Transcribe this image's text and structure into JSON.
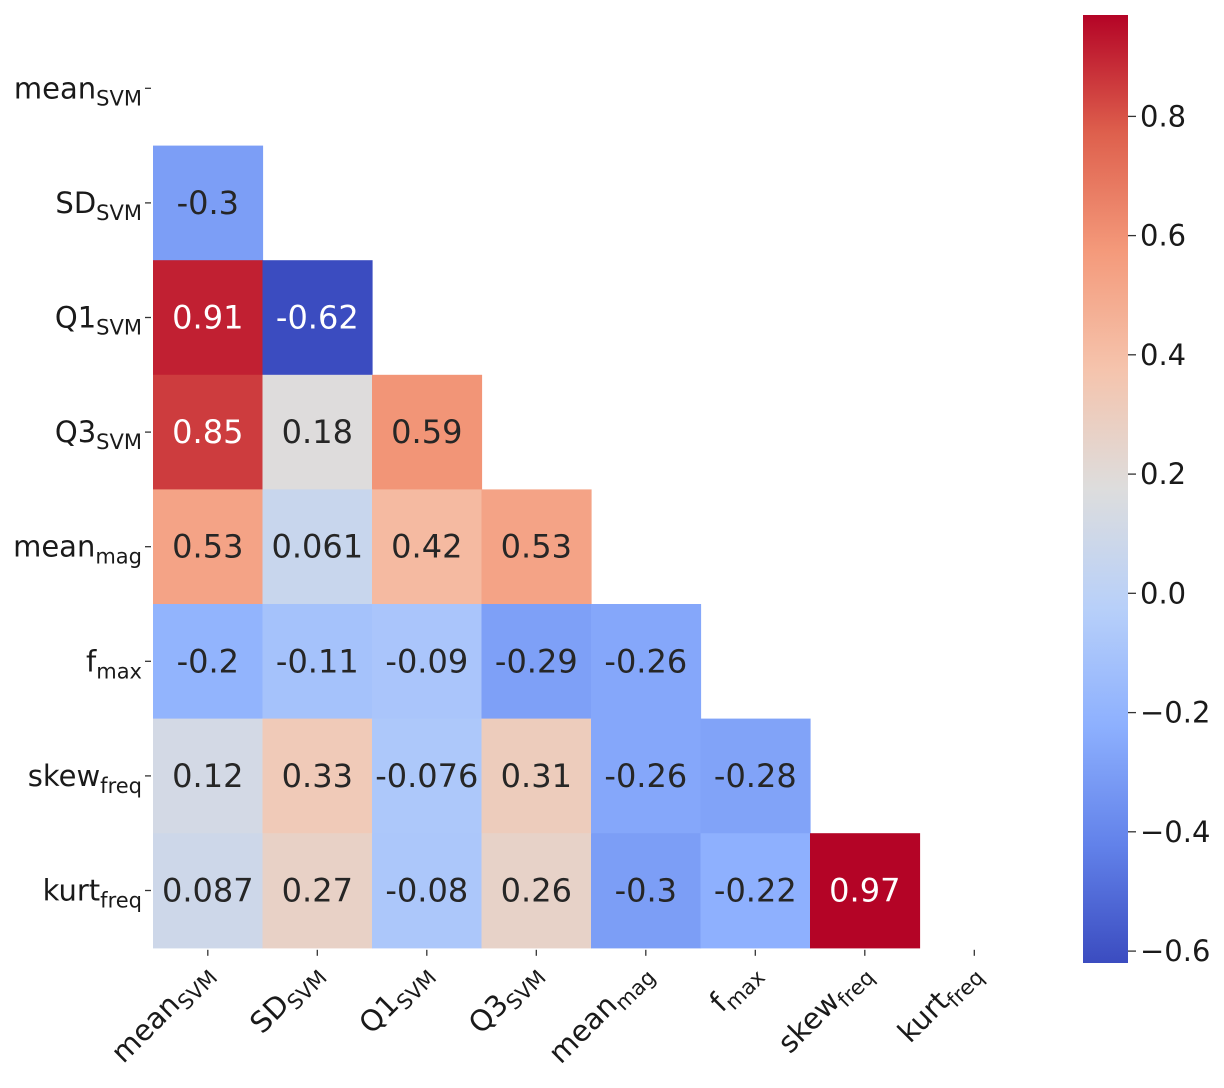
{
  "chart_data": {
    "type": "heatmap",
    "title": "",
    "mask": "upper-triangle",
    "labels": [
      {
        "base": "mean",
        "sub": "SVM"
      },
      {
        "base": "SD",
        "sub": "SVM"
      },
      {
        "base": "Q1",
        "sub": "SVM"
      },
      {
        "base": "Q3",
        "sub": "SVM"
      },
      {
        "base": "mean",
        "sub": "mag"
      },
      {
        "base": "f",
        "sub": "max"
      },
      {
        "base": "skew",
        "sub": "freq"
      },
      {
        "base": "kurt",
        "sub": "freq"
      }
    ],
    "matrix_lower": [
      [],
      [
        -0.3
      ],
      [
        0.91,
        -0.62
      ],
      [
        0.85,
        0.18,
        0.59
      ],
      [
        0.53,
        0.061,
        0.42,
        0.53
      ],
      [
        -0.2,
        -0.11,
        -0.09,
        -0.29,
        -0.26
      ],
      [
        0.12,
        0.33,
        -0.076,
        0.31,
        -0.26,
        -0.28
      ],
      [
        0.087,
        0.27,
        -0.08,
        0.26,
        -0.3,
        -0.22,
        0.97
      ]
    ],
    "value_labels": [
      [],
      [
        "-0.3"
      ],
      [
        "0.91",
        "-0.62"
      ],
      [
        "0.85",
        "0.18",
        "0.59"
      ],
      [
        "0.53",
        "0.061",
        "0.42",
        "0.53"
      ],
      [
        "-0.2",
        "-0.11",
        "-0.09",
        "-0.29",
        "-0.26"
      ],
      [
        "0.12",
        "0.33",
        "-0.076",
        "0.31",
        "-0.26",
        "-0.28"
      ],
      [
        "0.087",
        "0.27",
        "-0.08",
        "0.26",
        "-0.3",
        "-0.22",
        "0.97"
      ]
    ],
    "colormap": "coolwarm",
    "colorbar": {
      "range": [
        -0.62,
        0.97
      ],
      "ticks": [
        -0.6,
        -0.4,
        -0.2,
        0.0,
        0.2,
        0.4,
        0.6,
        0.8
      ],
      "tick_labels": [
        "−0.6",
        "−0.4",
        "−0.2",
        "0.0",
        "0.2",
        "0.4",
        "0.6",
        "0.8"
      ],
      "position": "right"
    }
  }
}
